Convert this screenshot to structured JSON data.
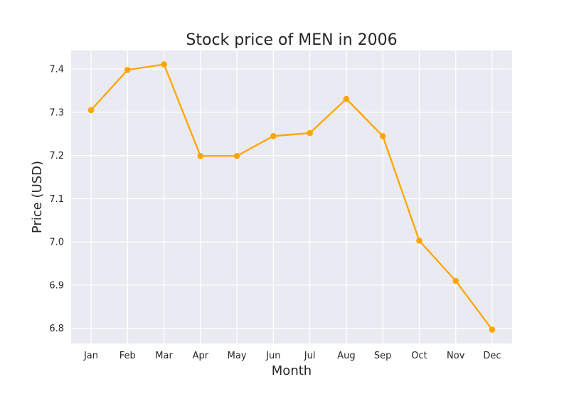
{
  "chart_data": {
    "type": "line",
    "title": "Stock price of MEN in 2006",
    "xlabel": "Month",
    "ylabel": "Price (USD)",
    "categories": [
      "Jan",
      "Feb",
      "Mar",
      "Apr",
      "May",
      "Jun",
      "Jul",
      "Aug",
      "Sep",
      "Oct",
      "Nov",
      "Dec"
    ],
    "series": [
      {
        "values": [
          7.305,
          7.398,
          7.411,
          7.199,
          7.199,
          7.245,
          7.252,
          7.331,
          7.245,
          7.003,
          6.91,
          6.797
        ]
      }
    ],
    "yticks": [
      "6.8",
      "6.9",
      "7.0",
      "7.1",
      "7.2",
      "7.3",
      "7.4"
    ],
    "ylim": [
      6.765,
      7.443
    ],
    "grid": true,
    "colors": {
      "line": "#FFA500",
      "plot_background": "#EAEAF2",
      "grid": "#FFFFFF",
      "text": "#262626"
    }
  }
}
